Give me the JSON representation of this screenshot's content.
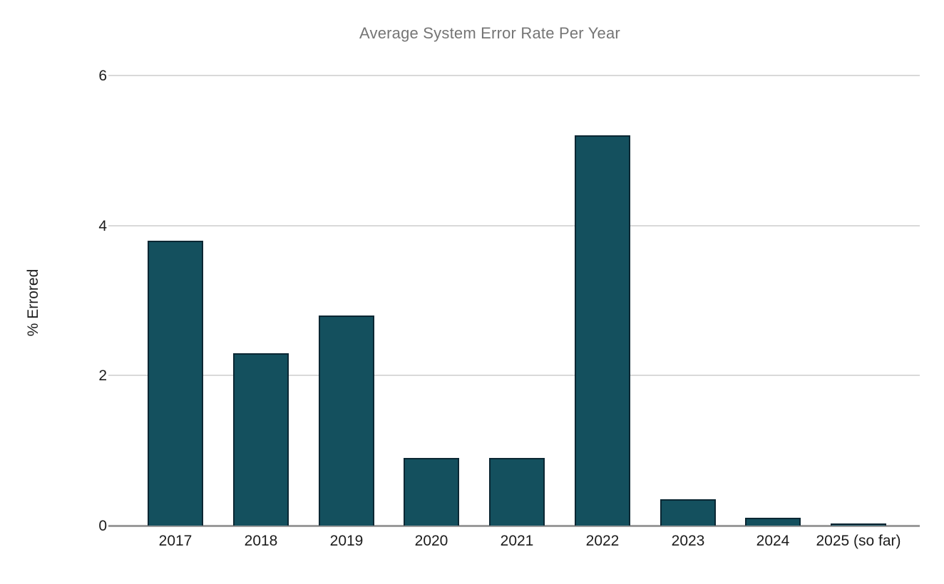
{
  "chart_data": {
    "type": "bar",
    "title": "Average System Error Rate Per Year",
    "xlabel": "",
    "ylabel": "% Errored",
    "categories": [
      "2017",
      "2018",
      "2019",
      "2020",
      "2021",
      "2022",
      "2023",
      "2024",
      "2025 (so far)"
    ],
    "values": [
      3.8,
      2.3,
      2.8,
      0.9,
      0.9,
      5.2,
      0.35,
      0.1,
      0.03
    ],
    "ylim": [
      0,
      6
    ],
    "yticks": [
      0,
      2,
      4,
      6
    ],
    "grid": true,
    "legend_position": "none",
    "colors": {
      "bar_fill": "#14505e",
      "bar_border": "#0b2733",
      "gridline": "#d9d9d9",
      "baseline": "#9a9a9a",
      "title_text": "#757575",
      "axis_text": "#1c1c1c",
      "background": "#ffffff"
    }
  }
}
